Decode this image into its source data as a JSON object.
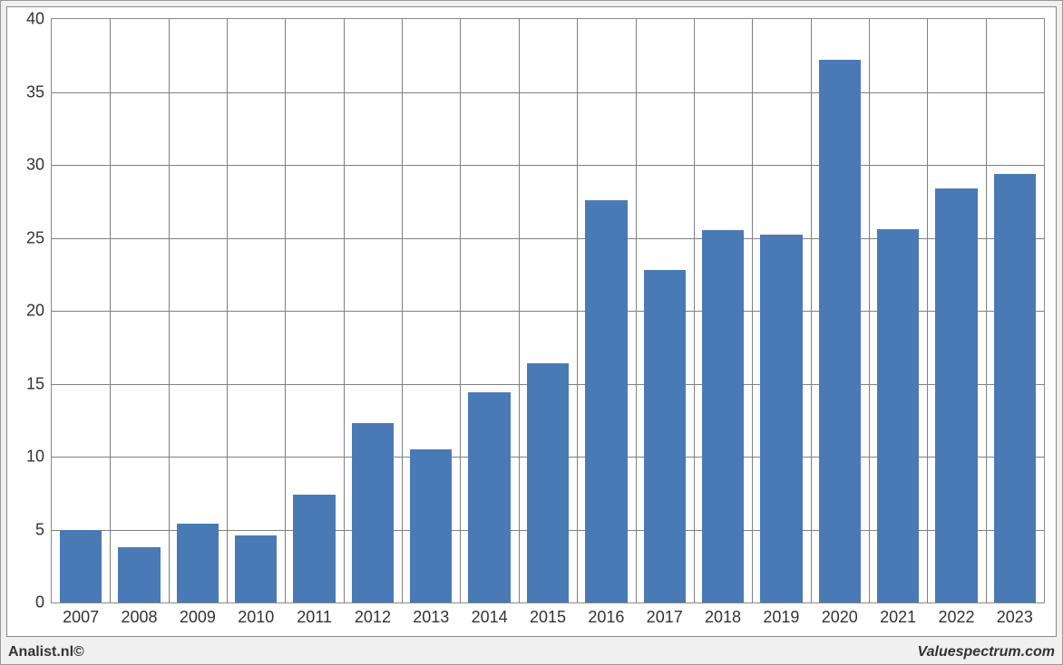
{
  "chart": {
    "type": "bar",
    "categories": [
      "2007",
      "2008",
      "2009",
      "2010",
      "2011",
      "2012",
      "2013",
      "2014",
      "2015",
      "2016",
      "2017",
      "2018",
      "2019",
      "2020",
      "2021",
      "2022",
      "2023"
    ],
    "values": [
      5.0,
      3.8,
      5.4,
      4.6,
      7.4,
      12.3,
      10.5,
      14.4,
      16.4,
      27.6,
      22.8,
      25.5,
      25.2,
      37.2,
      25.6,
      28.4,
      29.4
    ],
    "bar_color": "#4a7ab5",
    "ylim": [
      0,
      40
    ],
    "ytick_step": 5,
    "yticks": [
      0,
      5,
      10,
      15,
      20,
      25,
      30,
      35,
      40
    ],
    "background_color": "#ffffff",
    "outer_background": "#f0f0f0",
    "grid_color": "#808080",
    "border_color": "#888888",
    "label_fontsize": 18,
    "label_color": "#333333",
    "bar_width_ratio": 0.72
  },
  "footer": {
    "left": "Analist.nl©",
    "right": "Valuespectrum.com"
  }
}
